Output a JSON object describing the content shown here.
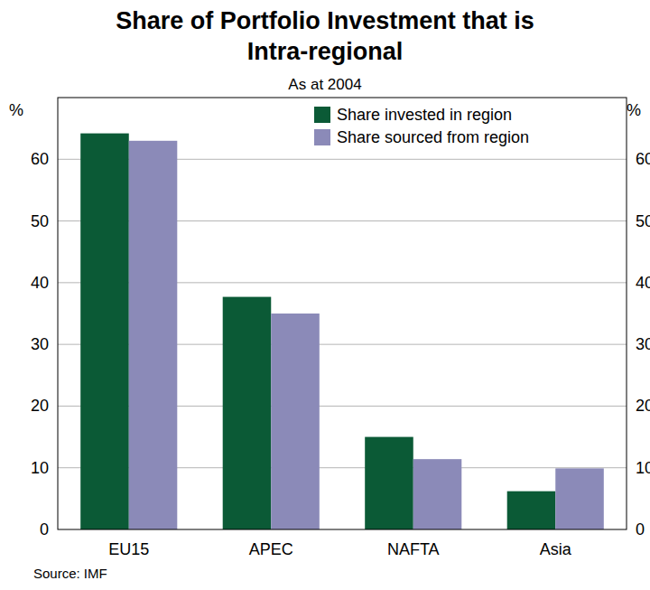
{
  "chart_data": {
    "type": "bar",
    "title": "Share of Portfolio Investment that is Intra-regional",
    "subtitle": "As at 2004",
    "y_label": "%",
    "source": "Source: IMF",
    "categories": [
      "EU15",
      "APEC",
      "NAFTA",
      "Asia"
    ],
    "series": [
      {
        "name": "Share invested in region",
        "color": "#0b5a36",
        "values": [
          64.2,
          37.7,
          15.0,
          6.2
        ]
      },
      {
        "name": "Share sourced from region",
        "color": "#8b8ab8",
        "values": [
          63.0,
          35.0,
          11.4,
          9.9
        ]
      }
    ],
    "ylim": [
      0,
      70
    ],
    "yticks": [
      0,
      10,
      20,
      30,
      40,
      50,
      60
    ],
    "grid": true,
    "legend": "upper right"
  }
}
